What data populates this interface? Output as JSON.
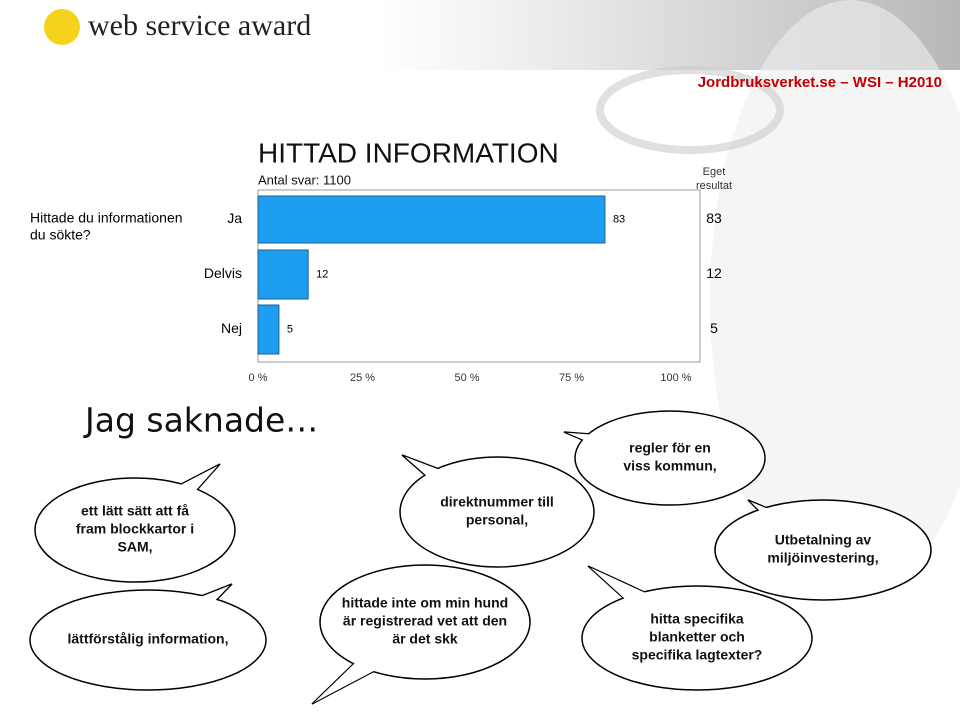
{
  "header": {
    "logo": "web service award",
    "site": "Jordbruksverket.se – WSI – H2010"
  },
  "chart_data": {
    "type": "bar",
    "orientation": "horizontal",
    "title": "HITTAD INFORMATION",
    "subtitle": "Antal svar: 1100",
    "question": [
      "Hittade du informationen",
      "du sökte?"
    ],
    "categories": [
      "Ja",
      "Delvis",
      "Nej"
    ],
    "values": [
      83,
      12,
      5
    ],
    "color": "#1e9ef0",
    "xlim": [
      0,
      100
    ],
    "xticks": [
      {
        "value": 0,
        "label": "0 %"
      },
      {
        "value": 25,
        "label": "25 %"
      },
      {
        "value": 50,
        "label": "50 %"
      },
      {
        "value": 75,
        "label": "75 %"
      },
      {
        "value": 100,
        "label": "100 %"
      }
    ],
    "own_result": {
      "label": [
        "Eget",
        "resultat"
      ],
      "values": [
        83,
        12,
        5
      ]
    }
  },
  "section": {
    "title": "Jag saknade…",
    "bubbles": [
      {
        "lines": [
          "ett lätt sätt att få",
          "fram blockkartor i",
          "SAM,"
        ]
      },
      {
        "lines": [
          "direktnummer till",
          "personal,"
        ]
      },
      {
        "lines": [
          "regler för en",
          "viss kommun,"
        ]
      },
      {
        "lines": [
          "Utbetalning av",
          "miljöinvestering,"
        ]
      },
      {
        "lines": [
          "lättförstålig information,"
        ]
      },
      {
        "lines": [
          "hittade inte om min hund",
          "är registrerad vet att den",
          "är det skk"
        ]
      },
      {
        "lines": [
          "hitta specifika",
          "blanketter och",
          "specifika lagtexter?"
        ]
      }
    ]
  }
}
